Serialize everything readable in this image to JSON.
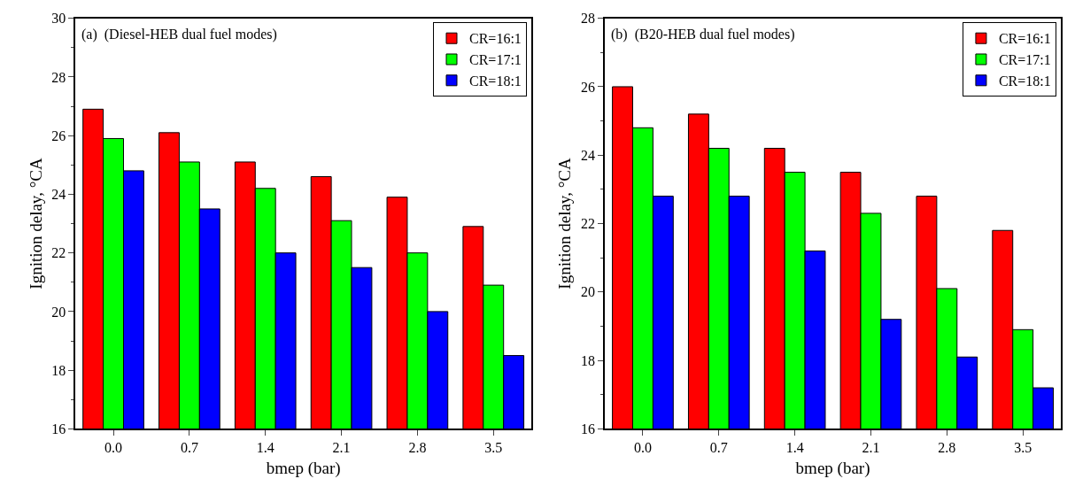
{
  "chart_data": [
    {
      "type": "bar",
      "title": "(a)  (Diesel-HEB dual fuel modes)",
      "xlabel": "bmep (bar)",
      "ylabel": "Ignition delay, °CA",
      "categories": [
        "0.0",
        "0.7",
        "1.4",
        "2.1",
        "2.8",
        "3.5"
      ],
      "ylim": [
        16,
        30
      ],
      "yticks": [
        16,
        18,
        20,
        22,
        24,
        26,
        28,
        30
      ],
      "grid": false,
      "legend": "top right",
      "series": [
        {
          "name": "CR=16:1",
          "color": "#ff0000",
          "values": [
            26.9,
            26.1,
            25.1,
            24.6,
            23.9,
            22.9
          ]
        },
        {
          "name": "CR=17:1",
          "color": "#00ff00",
          "values": [
            25.9,
            25.1,
            24.2,
            23.1,
            22.0,
            20.9
          ]
        },
        {
          "name": "CR=18:1",
          "color": "#0000ff",
          "values": [
            24.8,
            23.5,
            22.0,
            21.5,
            20.0,
            18.5
          ]
        }
      ]
    },
    {
      "type": "bar",
      "title": "(b)  (B20-HEB dual fuel modes)",
      "xlabel": "bmep (bar)",
      "ylabel": "Ignition delay, °CA",
      "categories": [
        "0.0",
        "0.7",
        "1.4",
        "2.1",
        "2.8",
        "3.5"
      ],
      "ylim": [
        16,
        28
      ],
      "yticks": [
        16,
        18,
        20,
        22,
        24,
        26,
        28
      ],
      "grid": false,
      "legend": "top right",
      "series": [
        {
          "name": "CR=16:1",
          "color": "#ff0000",
          "values": [
            26.0,
            25.2,
            24.2,
            23.5,
            22.8,
            21.8
          ]
        },
        {
          "name": "CR=17:1",
          "color": "#00ff00",
          "values": [
            24.8,
            24.2,
            23.5,
            22.3,
            20.1,
            18.9
          ]
        },
        {
          "name": "CR=18:1",
          "color": "#0000ff",
          "values": [
            22.8,
            22.8,
            21.2,
            19.2,
            18.1,
            17.2
          ]
        }
      ]
    }
  ]
}
